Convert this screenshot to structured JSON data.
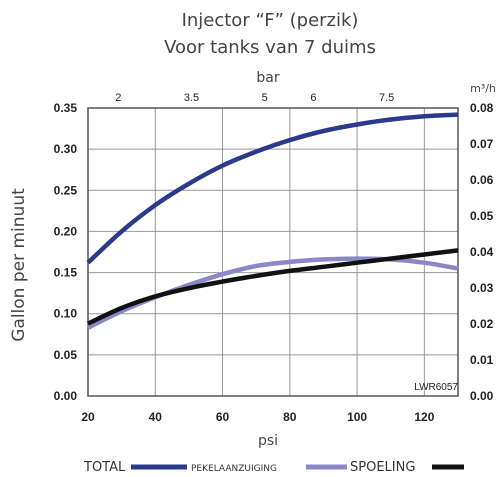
{
  "colors": {
    "total": "#2b3a8c",
    "brine": "#8b88c8",
    "rinse": "#111111",
    "grid": "#999999",
    "text": "#444444"
  },
  "chart_data": {
    "type": "line",
    "title": "Injector “F” (perzik)",
    "subtitle": "Voor tanks van 7 duims",
    "xlabel": "psi",
    "ylabel": "Gallon per minuut",
    "top_axis_label": "bar",
    "right_axis_label": "m³/h",
    "xlim": [
      20,
      130
    ],
    "ylim": [
      0,
      0.35
    ],
    "x_ticks": [
      "20",
      "40",
      "60",
      "80",
      "100",
      "120"
    ],
    "y_ticks": [
      "0.00",
      "0.05",
      "0.10",
      "0.15",
      "0.20",
      "0.25",
      "0.30",
      "0.35"
    ],
    "top_ticks": [
      "2",
      "3.5",
      "5",
      "6",
      "7.5"
    ],
    "right_ticks": [
      "0.00",
      "0.01",
      "0.02",
      "0.03",
      "0.04",
      "0.05",
      "0.06",
      "0.07",
      "0.08"
    ],
    "grid": true,
    "legend_position": "bottom",
    "annotation": "LWR6057",
    "series": [
      {
        "name": "TOTAL",
        "x": [
          20,
          30,
          40,
          50,
          60,
          70,
          80,
          90,
          100,
          110,
          120,
          130
        ],
        "values": [
          0.162,
          0.2,
          0.232,
          0.258,
          0.28,
          0.297,
          0.311,
          0.322,
          0.33,
          0.336,
          0.34,
          0.342
        ]
      },
      {
        "name": "PEKELAANZUIGING",
        "x": [
          20,
          30,
          40,
          50,
          60,
          70,
          80,
          90,
          100,
          110,
          120,
          130
        ],
        "values": [
          0.083,
          0.103,
          0.12,
          0.135,
          0.148,
          0.158,
          0.163,
          0.166,
          0.167,
          0.166,
          0.162,
          0.155
        ]
      },
      {
        "name": "SPOELING",
        "x": [
          20,
          30,
          40,
          50,
          60,
          70,
          80,
          90,
          100,
          110,
          120,
          130
        ],
        "values": [
          0.088,
          0.107,
          0.121,
          0.131,
          0.139,
          0.146,
          0.152,
          0.157,
          0.162,
          0.167,
          0.172,
          0.177
        ]
      }
    ]
  }
}
